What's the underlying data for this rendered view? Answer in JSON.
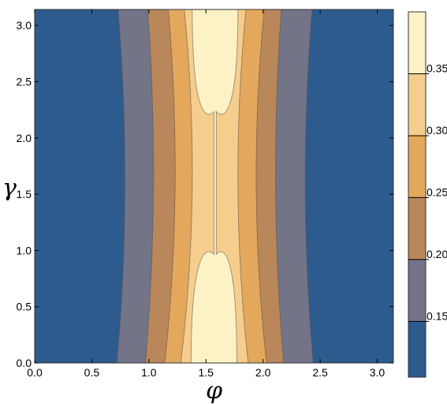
{
  "chart_data": {
    "type": "heatmap",
    "subtype": "contour",
    "title": "",
    "xlabel": "φ",
    "ylabel": "γ",
    "xlim": [
      0,
      3.14159
    ],
    "ylim": [
      0,
      3.14159
    ],
    "x_ticks": [
      "0.0",
      "0.5",
      "1.0",
      "1.5",
      "2.0",
      "2.5",
      "3.0"
    ],
    "y_ticks": [
      "0.0",
      "0.5",
      "1.0",
      "1.5",
      "2.0",
      "2.5",
      "3.0"
    ],
    "colorbar": {
      "range": [
        0.105,
        0.4
      ],
      "ticks": [
        "0.15",
        "0.20",
        "0.25",
        "0.30",
        "0.35"
      ],
      "levels": [
        0.15,
        0.2,
        0.25,
        0.3,
        0.35
      ],
      "colors": [
        "#2d5b8e",
        "#737487",
        "#b9875a",
        "#e3a85c",
        "#f5cd8d",
        "#fdf1c6"
      ]
    },
    "contours": [
      {
        "level": 0.15,
        "left_phi": [
          0.72,
          0.79,
          0.73
        ],
        "right_phi": [
          2.44,
          2.37,
          2.43
        ]
      },
      {
        "level": 0.2,
        "left_phi": [
          0.97,
          1.04,
          0.99
        ],
        "right_phi": [
          2.18,
          2.11,
          2.16
        ]
      },
      {
        "level": 0.25,
        "left_phi": [
          1.14,
          1.23,
          1.17
        ],
        "right_phi": [
          2.03,
          1.94,
          2.01
        ]
      },
      {
        "level": 0.3,
        "left_phi": [
          1.28,
          1.38,
          1.31
        ],
        "right_phi": [
          1.87,
          1.78,
          1.85
        ]
      },
      {
        "level": 0.35,
        "left_phi": [
          1.37,
          1.57,
          1.38
        ],
        "right_phi": [
          1.77,
          1.59,
          1.78
        ],
        "pinch_gamma": [
          1.0,
          2.2
        ]
      }
    ],
    "contour_gamma": [
      0.0,
      1.57,
      3.14159
    ]
  }
}
